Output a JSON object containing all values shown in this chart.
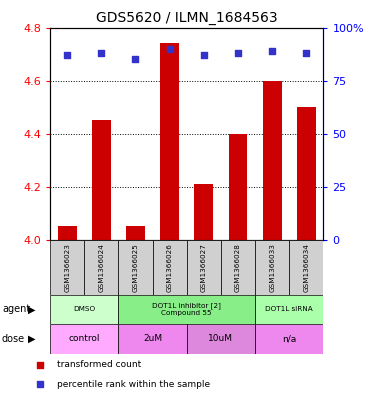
{
  "title": "GDS5620 / ILMN_1684563",
  "samples": [
    "GSM1366023",
    "GSM1366024",
    "GSM1366025",
    "GSM1366026",
    "GSM1366027",
    "GSM1366028",
    "GSM1366033",
    "GSM1366034"
  ],
  "bar_values": [
    4.05,
    4.45,
    4.05,
    4.74,
    4.21,
    4.4,
    4.6,
    4.5
  ],
  "percentile_values": [
    87,
    88,
    85,
    90,
    87,
    88,
    89,
    88
  ],
  "ylim": [
    4.0,
    4.8
  ],
  "y2lim": [
    0,
    100
  ],
  "yticks": [
    4.0,
    4.2,
    4.4,
    4.6,
    4.8
  ],
  "y2ticks": [
    0,
    25,
    50,
    75,
    100
  ],
  "bar_color": "#cc0000",
  "dot_color": "#3333cc",
  "agent_groups": [
    {
      "label": "DMSO",
      "start": 0,
      "end": 2,
      "color": "#ccffcc"
    },
    {
      "label": "DOT1L inhibitor [2]\nCompound 55",
      "start": 2,
      "end": 6,
      "color": "#88ee88"
    },
    {
      "label": "DOT1L siRNA",
      "start": 6,
      "end": 8,
      "color": "#aaffaa"
    }
  ],
  "dose_groups": [
    {
      "label": "control",
      "start": 0,
      "end": 2,
      "color": "#ffaaff"
    },
    {
      "label": "2uM",
      "start": 2,
      "end": 4,
      "color": "#ee88ee"
    },
    {
      "label": "10uM",
      "start": 4,
      "end": 6,
      "color": "#dd88dd"
    },
    {
      "label": "n/a",
      "start": 6,
      "end": 8,
      "color": "#ee88ee"
    }
  ],
  "legend_items": [
    {
      "label": "transformed count",
      "color": "#cc0000"
    },
    {
      "label": "percentile rank within the sample",
      "color": "#3333cc"
    }
  ],
  "title_fontsize": 10,
  "tick_fontsize": 8,
  "background_color": "#ffffff",
  "bar_width": 0.55
}
